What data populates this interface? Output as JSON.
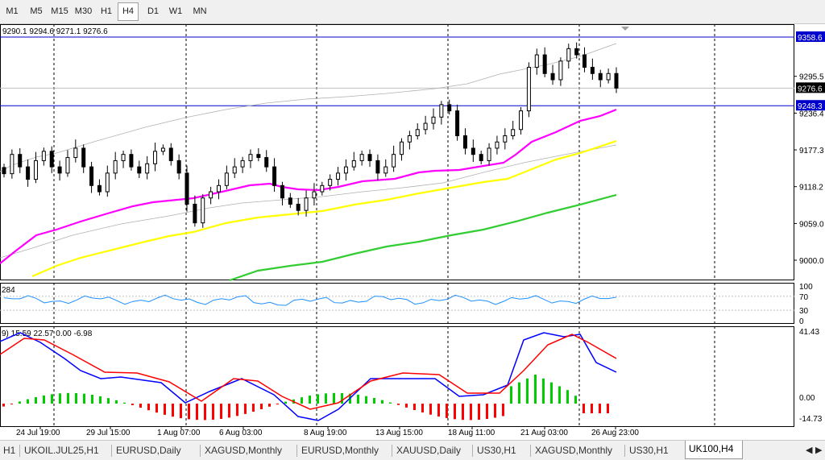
{
  "timeframes": [
    "M1",
    "M5",
    "M15",
    "M30",
    "H1",
    "H4",
    "D1",
    "W1",
    "MN"
  ],
  "active_timeframe": "H4",
  "ohlc_readout": "9290.1 9294.6 9271.1 9276.6",
  "price_labels": [
    "9295.5",
    "9236.4",
    "9177.3",
    "9118.2",
    "9059.0",
    "9000.0"
  ],
  "horizontal_lines": [
    {
      "price": "9358.6",
      "color": "#0000cd"
    },
    {
      "price": "9248.3",
      "color": "#0000cd"
    }
  ],
  "current_price": "9276.6",
  "time_labels": [
    "24 Jul 19:00",
    "29 Jul 15:00",
    "1 Aug 07:00",
    "6 Aug 03:00",
    "8 Aug 19:00",
    "13 Aug 15:00",
    "18 Aug 11:00",
    "21 Aug 03:00",
    "26 Aug 23:00"
  ],
  "indicator1": {
    "label": "284",
    "levels": [
      "100",
      "70",
      "30",
      "0"
    ]
  },
  "indicator2": {
    "label": "9) 15.59 22.57 0.00 -6.98",
    "levels": [
      "41.43",
      "0.00",
      "-14.73"
    ]
  },
  "colors": {
    "ma_fast": "#ff00ff",
    "ma_mid": "#ffff00",
    "ma_slow": "#32cd32",
    "hline": "#0000cd",
    "osc": "#1e90ff",
    "macd_main": "#0000ff",
    "macd_signal": "#ff0000",
    "hist_pos": "#00cc00",
    "hist_neg": "#ff0000"
  },
  "symbol_tabs": [
    "H1",
    "UKOIL.JUL25,H1",
    "EURUSD,Daily",
    "XAGUSD,Monthly",
    "EURUSD,Monthly",
    "XAUUSD,Daily",
    "US30,H1",
    "XAGUSD,Monthly",
    "US30,H1",
    "UK100,H4"
  ],
  "active_tab": "UK100,H4",
  "chart_data": {
    "type": "line",
    "candles_close": [
      9139,
      9170,
      9150,
      9130,
      9160,
      9175,
      9150,
      9140,
      9165,
      9180,
      9150,
      9120,
      9110,
      9140,
      9160,
      9170,
      9150,
      9140,
      9155,
      9175,
      9180,
      9160,
      9140,
      9090,
      9060,
      9100,
      9110,
      9120,
      9140,
      9150,
      9160,
      9170,
      9165,
      9150,
      9120,
      9100,
      9090,
      9080,
      9100,
      9110,
      9120,
      9130,
      9140,
      9150,
      9160,
      9170,
      9160,
      9140,
      9150,
      9170,
      9190,
      9200,
      9210,
      9220,
      9230,
      9250,
      9240,
      9200,
      9180,
      9170,
      9160,
      9180,
      9190,
      9200,
      9210,
      9240,
      9310,
      9330,
      9300,
      9290,
      9320,
      9340,
      9330,
      9310,
      9300,
      9290,
      9300,
      9276.6
    ]
  }
}
